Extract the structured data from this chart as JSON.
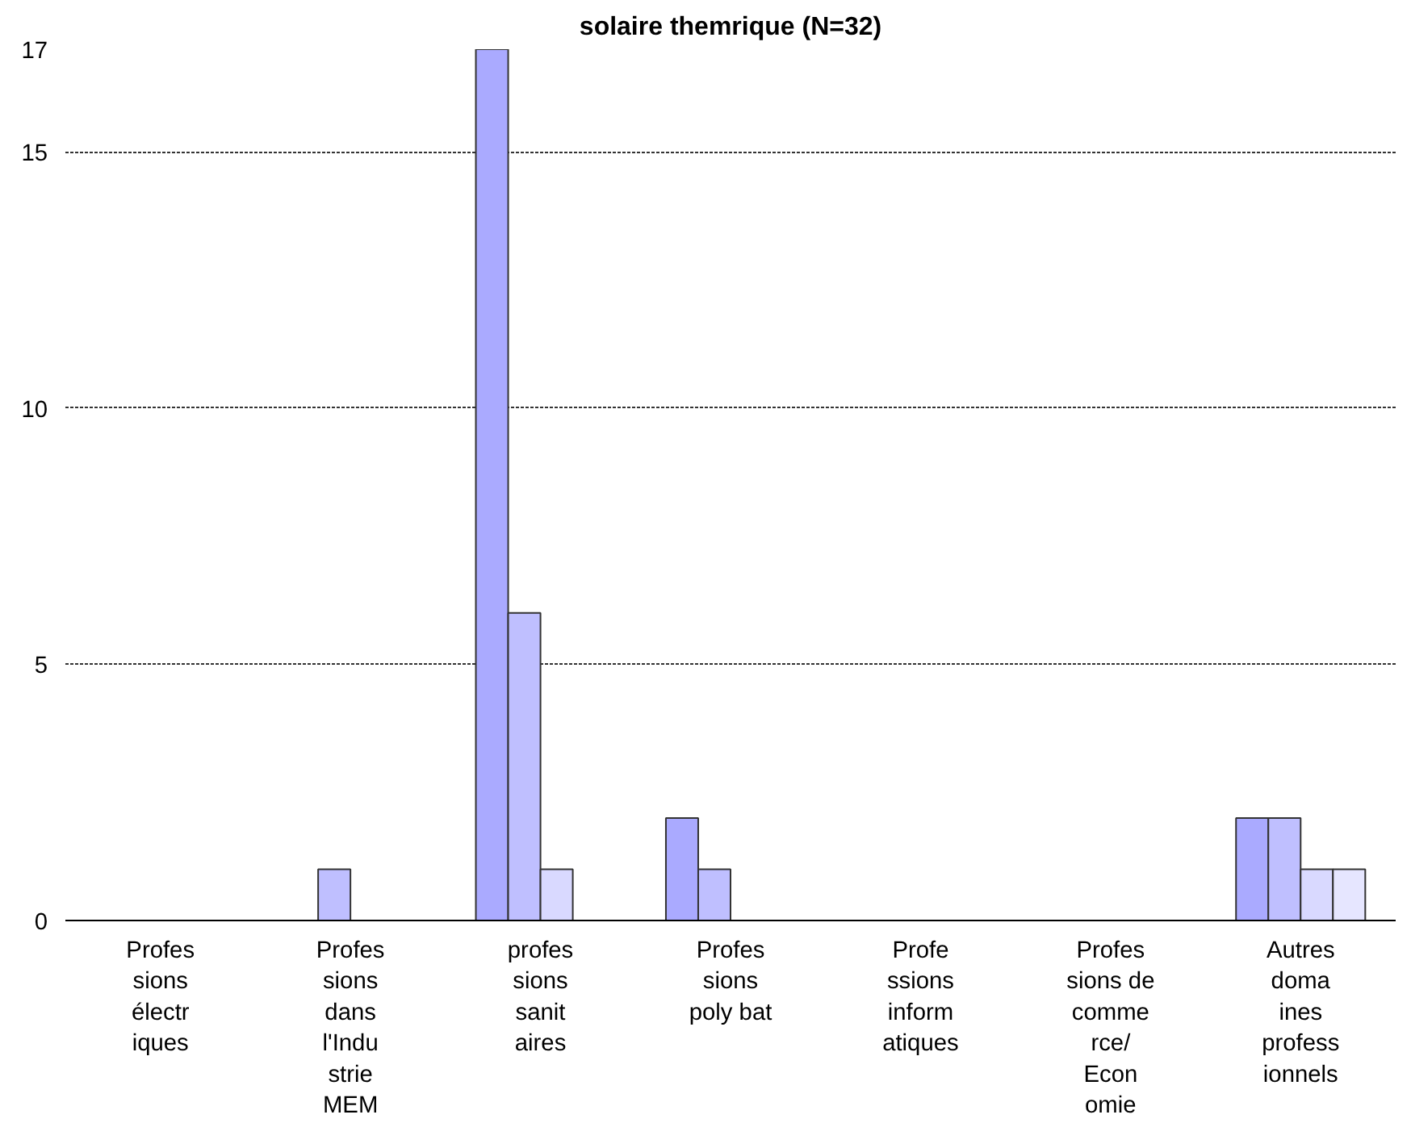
{
  "chart_data": {
    "type": "bar",
    "title": "solaire themrique (N=32)",
    "categories": [
      "Profes\nsions\nélectr\niques",
      "Profes\nsions\ndans\nl'Indu\nstrie\nMEM",
      "profes\nsions\nsanit\naires",
      "Profes\nsions\npoly bat",
      "Profe\nssions\ninform\natiques",
      "Profes\nsions de\ncomme\nrce/\nEcon\nomie",
      "Autres\ndoma\nines\nprofess\nionnels"
    ],
    "series": [
      {
        "color": "#aaaaff",
        "values": [
          0,
          0,
          17,
          2,
          0,
          0,
          2
        ]
      },
      {
        "color": "#bfbfff",
        "values": [
          0,
          1,
          6,
          1,
          0,
          0,
          2
        ]
      },
      {
        "color": "#d9d9ff",
        "values": [
          0,
          0,
          1,
          0,
          0,
          0,
          1
        ]
      },
      {
        "color": "#e6e6ff",
        "values": [
          0,
          0,
          0,
          0,
          0,
          0,
          1
        ]
      }
    ],
    "ylim": [
      0,
      17
    ],
    "yticks": [
      0,
      5,
      10,
      15,
      17
    ],
    "grid": "y"
  }
}
